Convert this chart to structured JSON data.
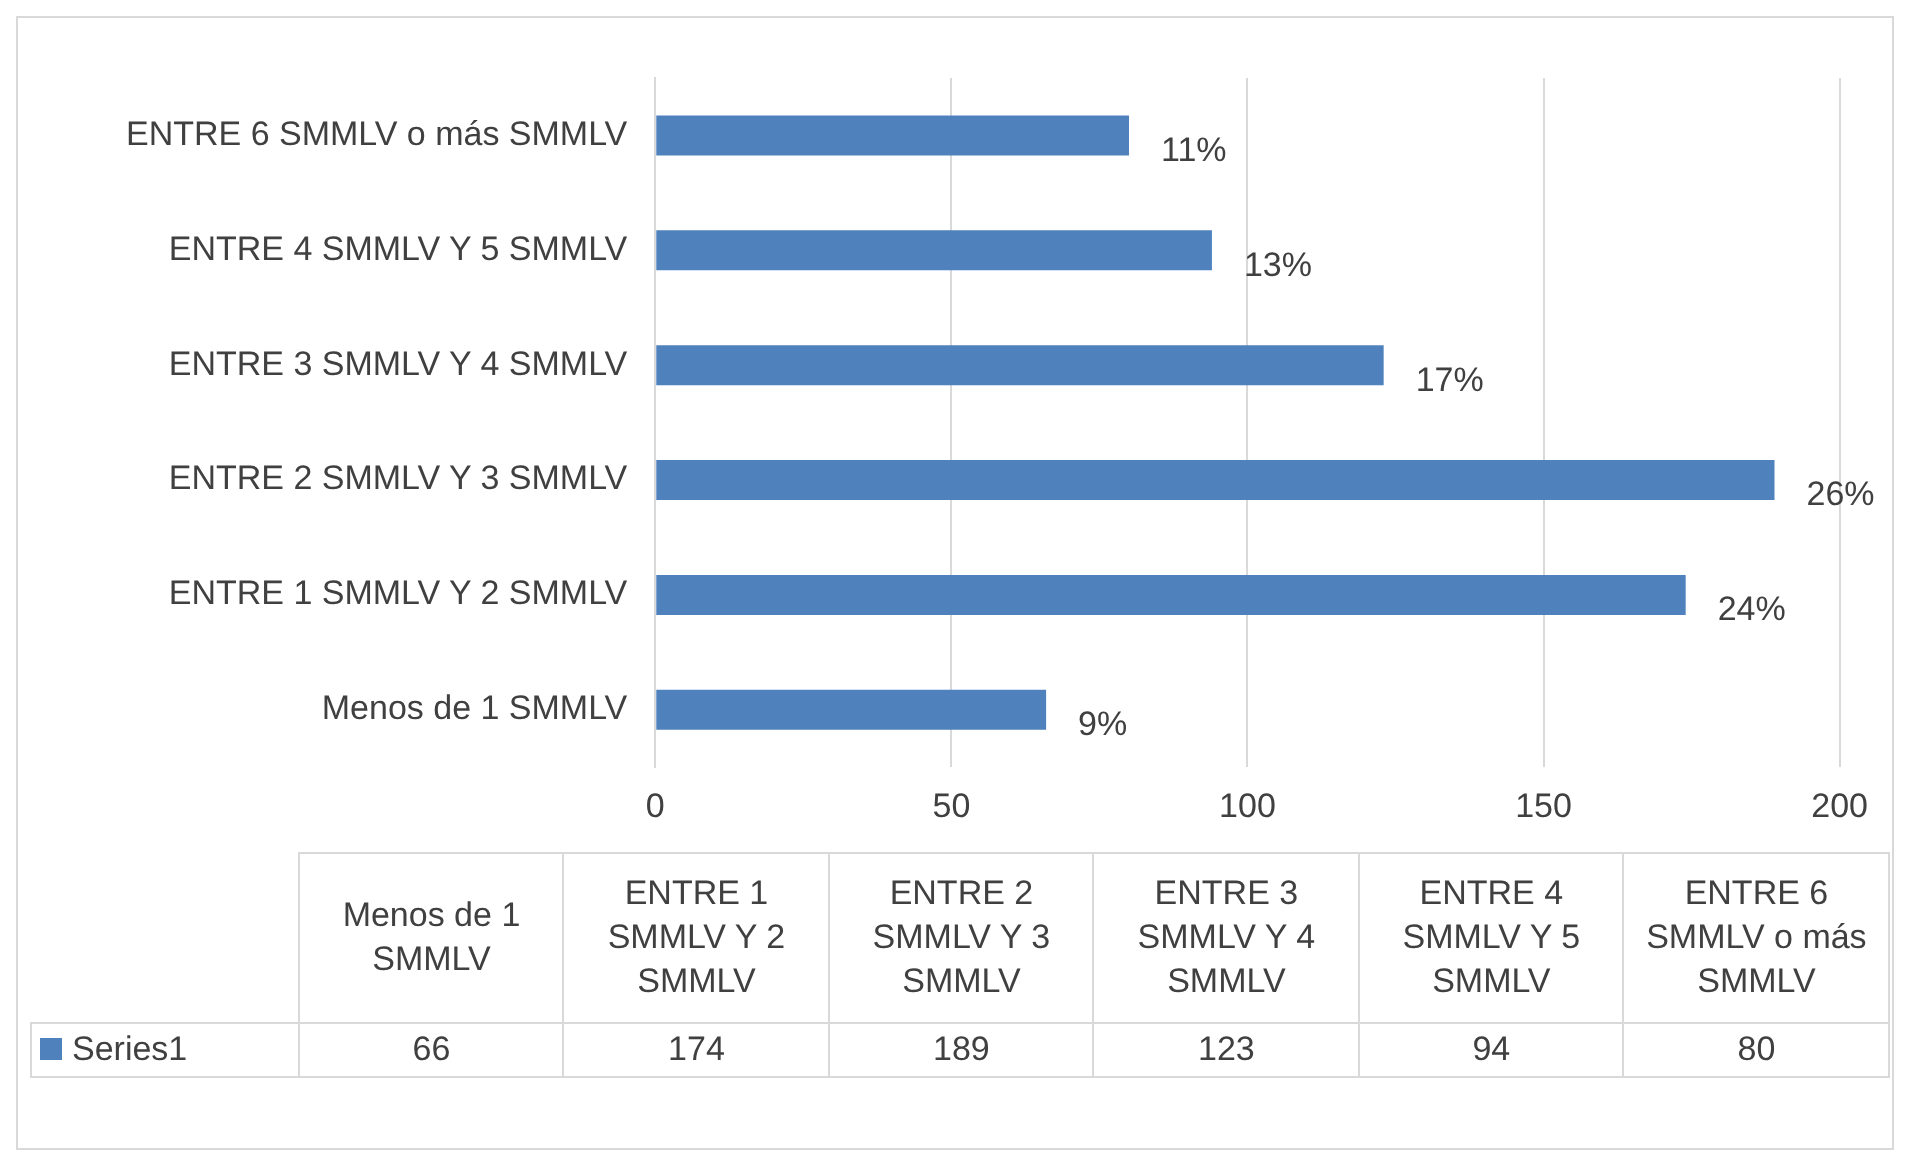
{
  "chart_data": [
    {
      "type": "bar",
      "orientation": "horizontal",
      "categories": [
        "ENTRE 6 SMMLV o más SMMLV",
        "ENTRE 4 SMMLV Y 5 SMMLV",
        "ENTRE 3 SMMLV Y 4 SMMLV",
        "ENTRE 2 SMMLV Y 3 SMMLV",
        "ENTRE 1 SMMLV Y 2 SMMLV",
        "Menos de 1 SMMLV"
      ],
      "series": [
        {
          "color": "#4f81bd",
          "values": [
            80,
            94,
            123,
            189,
            174,
            66
          ]
        }
      ],
      "annotations": [
        {
          "text": "11%",
          "x": 80,
          "y": "ENTRE 6 SMMLV o más SMMLV"
        },
        {
          "text": "13%",
          "x": 94,
          "y": "ENTRE 4 SMMLV Y 5 SMMLV"
        },
        {
          "text": "17%",
          "x": 123,
          "y": "ENTRE 3 SMMLV Y 4 SMMLV"
        },
        {
          "text": "26%",
          "x": 189,
          "y": "ENTRE 2 SMMLV Y 3 SMMLV"
        },
        {
          "text": "24%",
          "x": 174,
          "y": "ENTRE 1 SMMLV Y 2 SMMLV"
        },
        {
          "text": "9%",
          "x": 66,
          "y": "Menos de 1 SMMLV"
        }
      ],
      "xlim": [
        0,
        200
      ],
      "xticks": [
        0,
        50,
        100,
        150,
        200
      ],
      "grid": "x"
    },
    {
      "type": "other",
      "categories": [
        "Menos de 1 SMMLV",
        "ENTRE 1 SMMLV Y 2 SMMLV",
        "ENTRE 2 SMMLV Y 3 SMMLV",
        "ENTRE 3 SMMLV Y 4 SMMLV",
        "ENTRE 4 SMMLV Y 5 SMMLV",
        "ENTRE 6 SMMLV o más SMMLV"
      ],
      "series": [
        {
          "name": "Series1",
          "color": "#4f81bd",
          "values": [
            66,
            174,
            189,
            123,
            94,
            80
          ]
        }
      ],
      "data_labels": true
    }
  ]
}
